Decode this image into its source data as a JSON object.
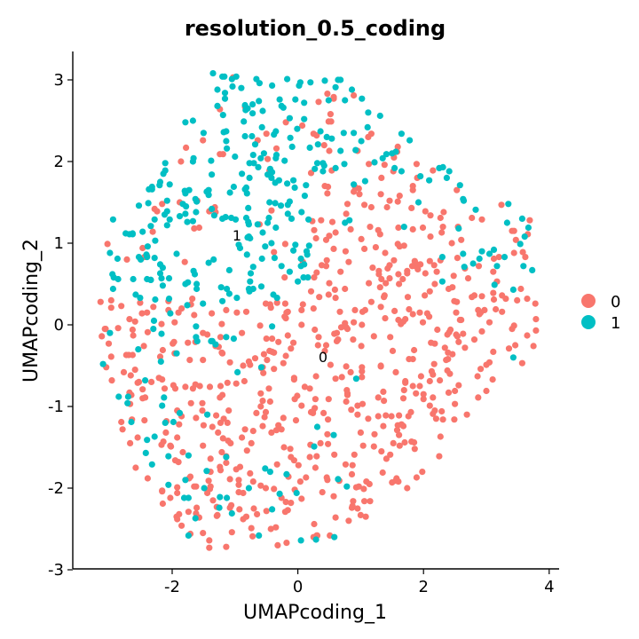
{
  "chart_data": {
    "type": "scatter",
    "title": "resolution_0.5_coding",
    "xlabel": "UMAPcoding_1",
    "ylabel": "UMAPcoding_2",
    "xlim": [
      -3.6,
      4.1
    ],
    "ylim": [
      -3.0,
      3.3
    ],
    "xticks": [
      -2,
      0,
      2,
      4
    ],
    "yticks": [
      -3,
      -2,
      -1,
      0,
      1,
      2,
      3
    ],
    "grid": false,
    "legend_position": "right",
    "series": [
      {
        "name": "0",
        "color": "#F8766D",
        "values": []
      },
      {
        "name": "1",
        "color": "#00BFC4",
        "values": []
      }
    ],
    "cluster_labels": [
      {
        "text": "1",
        "x": -0.97,
        "y": 1.1
      },
      {
        "text": "0",
        "x": 0.4,
        "y": -0.39
      }
    ]
  }
}
